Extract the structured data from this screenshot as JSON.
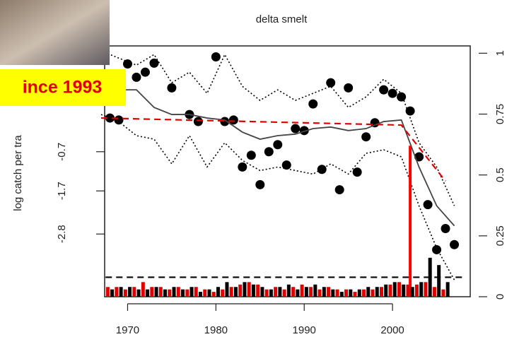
{
  "chart_data": {
    "type": "scatter",
    "title": "delta smelt",
    "y_label": "log catch per tra",
    "banner": "ince 1993",
    "xlim": [
      1967.4,
      2008.8
    ],
    "xticks": [
      1970,
      1980,
      1990,
      2000
    ],
    "ylim": [
      -4.4,
      2.0
    ],
    "yticks": [
      -2.8,
      -1.7,
      -0.7
    ],
    "y2lim": [
      0,
      1.03
    ],
    "y2ticks": [
      0,
      0.25,
      0.5,
      0.75,
      1
    ],
    "series": [
      {
        "style": "points",
        "color": "#000000",
        "x": [
          1968,
          1969,
          1970,
          1971,
          1972,
          1973,
          1975,
          1977,
          1978,
          1980,
          1981,
          1982,
          1983,
          1984,
          1985,
          1986,
          1987,
          1988,
          1989,
          1990,
          1991,
          1992,
          1993,
          1994,
          1995,
          1996,
          1997,
          1998,
          1999,
          2000,
          2001,
          2002,
          2003,
          2004,
          2005,
          2006,
          2007
        ],
        "values": [
          0.16,
          0.11,
          1.54,
          1.2,
          1.33,
          1.56,
          0.93,
          0.25,
          0.07,
          1.72,
          0.07,
          0.11,
          -1.09,
          -0.79,
          -1.54,
          -0.7,
          -0.52,
          -1.04,
          -0.11,
          -0.16,
          0.52,
          -1.15,
          1.06,
          -1.67,
          0.93,
          -1.22,
          -0.32,
          0.04,
          0.88,
          0.79,
          0.7,
          0.34,
          -0.83,
          -2.05,
          -3.2,
          -2.66,
          -3.07
        ]
      },
      {
        "style": "solid",
        "color": "#444444",
        "x": [
          1967,
          1969,
          1971,
          1973,
          1975,
          1977,
          1979,
          1981,
          1983,
          1985,
          1987,
          1989,
          1991,
          1993,
          1995,
          1997,
          1999,
          2001,
          2003,
          2005,
          2007
        ],
        "values": [
          0.79,
          0.88,
          0.88,
          0.43,
          0.25,
          0.25,
          0.16,
          0.11,
          -0.2,
          -0.38,
          -0.29,
          -0.25,
          -0.11,
          -0.07,
          -0.16,
          -0.11,
          0.07,
          0.11,
          -1.09,
          -2.08,
          -2.59
        ]
      },
      {
        "style": "dotted",
        "color": "#000000",
        "x": [
          1967,
          1969,
          1971,
          1973,
          1975,
          1977,
          1979,
          1981,
          1983,
          1985,
          1987,
          1989,
          1991,
          1993,
          1995,
          1997,
          1999,
          2001,
          2003,
          2005,
          2007
        ],
        "values": [
          1.87,
          1.69,
          1.51,
          1.78,
          1.06,
          1.33,
          0.79,
          1.78,
          0.97,
          0.61,
          0.88,
          0.61,
          0.79,
          0.97,
          0.43,
          0.7,
          1.15,
          0.79,
          -0.47,
          -1.09,
          -2.08
        ]
      },
      {
        "style": "dotted",
        "color": "#000000",
        "x": [
          1967,
          1969,
          1971,
          1973,
          1975,
          1977,
          1979,
          1981,
          1983,
          1985,
          1987,
          1989,
          1991,
          1993,
          1995,
          1997,
          1999,
          2001,
          2003,
          2005,
          2007
        ],
        "values": [
          0.25,
          0.07,
          -0.29,
          -0.38,
          -1.01,
          -0.29,
          -1.09,
          -0.47,
          -0.92,
          -1.18,
          -1.09,
          -1.18,
          -1.27,
          -1.01,
          -1.27,
          -0.74,
          -0.65,
          -0.83,
          -2.08,
          -3.16,
          -3.97
        ]
      },
      {
        "style": "dashed",
        "color": "#e00000",
        "x": [
          1967,
          2001,
          2006
        ],
        "values": [
          0.16,
          -0.02,
          -1.45
        ]
      },
      {
        "style": "dashed",
        "color": "#000000",
        "axis": "y2",
        "x": [
          1967.5,
          2008
        ],
        "values": [
          0.08,
          0.08
        ]
      },
      {
        "style": "solid-thick",
        "color": "#ff0000",
        "axis": "y2",
        "x": [
          2002,
          2002
        ],
        "values": [
          0,
          0.62
        ]
      },
      {
        "style": "bars",
        "color": "#e00000",
        "axis": "y2",
        "offset": -0.25,
        "x": [
          1968,
          1969,
          1970,
          1971,
          1972,
          1973,
          1974,
          1975,
          1976,
          1977,
          1978,
          1979,
          1980,
          1981,
          1982,
          1983,
          1984,
          1985,
          1986,
          1987,
          1988,
          1989,
          1990,
          1991,
          1992,
          1993,
          1994,
          1995,
          1996,
          1997,
          1998,
          1999,
          2000,
          2001,
          2002,
          2003,
          2004,
          2005,
          2006
        ],
        "values": [
          0.04,
          0.04,
          0.03,
          0.04,
          0.06,
          0.04,
          0.04,
          0.03,
          0.04,
          0.03,
          0.04,
          0.03,
          0.02,
          0.03,
          0.04,
          0.05,
          0.06,
          0.05,
          0.03,
          0.04,
          0.03,
          0.04,
          0.05,
          0.04,
          0.03,
          0.04,
          0.03,
          0.03,
          0.02,
          0.03,
          0.03,
          0.04,
          0.05,
          0.06,
          0.05,
          0.05,
          0.06,
          0.04,
          0.03
        ]
      },
      {
        "style": "bars",
        "color": "#000000",
        "axis": "y2",
        "offset": 0.25,
        "x": [
          1968,
          1969,
          1970,
          1971,
          1972,
          1973,
          1974,
          1975,
          1976,
          1977,
          1978,
          1979,
          1980,
          1981,
          1982,
          1983,
          1984,
          1985,
          1986,
          1987,
          1988,
          1989,
          1990,
          1991,
          1992,
          1993,
          1994,
          1995,
          1996,
          1997,
          1998,
          1999,
          2000,
          2001,
          2002,
          2003,
          2004,
          2005,
          2006
        ],
        "values": [
          0.03,
          0.04,
          0.04,
          0.03,
          0.03,
          0.04,
          0.03,
          0.04,
          0.03,
          0.04,
          0.02,
          0.03,
          0.04,
          0.06,
          0.04,
          0.06,
          0.05,
          0.04,
          0.03,
          0.04,
          0.05,
          0.03,
          0.04,
          0.05,
          0.04,
          0.03,
          0.02,
          0.03,
          0.03,
          0.04,
          0.04,
          0.05,
          0.06,
          0.05,
          0.04,
          0.06,
          0.16,
          0.13,
          0.06
        ]
      }
    ]
  }
}
